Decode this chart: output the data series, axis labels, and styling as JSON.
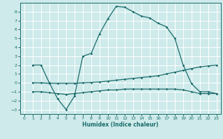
{
  "xlabel": "Humidex (Indice chaleur)",
  "xlim": [
    -0.5,
    23.5
  ],
  "ylim": [
    -3.5,
    9.0
  ],
  "yticks": [
    -3,
    -2,
    -1,
    0,
    1,
    2,
    3,
    4,
    5,
    6,
    7,
    8
  ],
  "xticks": [
    0,
    1,
    2,
    3,
    4,
    5,
    6,
    7,
    8,
    9,
    10,
    11,
    12,
    13,
    14,
    15,
    16,
    17,
    18,
    19,
    20,
    21,
    22,
    23
  ],
  "bg_color": "#ceeaea",
  "grid_color": "#ffffff",
  "line_color": "#1a6b6b",
  "line1_x": [
    1,
    2,
    3,
    4,
    5,
    6,
    7,
    8,
    9,
    10,
    11,
    12,
    13,
    14,
    15,
    16,
    17,
    18,
    19,
    20,
    21,
    22,
    23
  ],
  "line1_y": [
    2.0,
    2.0,
    0.0,
    -1.8,
    -3.0,
    -1.5,
    3.0,
    3.3,
    5.5,
    7.2,
    8.6,
    8.5,
    8.0,
    7.5,
    7.3,
    6.7,
    6.3,
    5.0,
    2.0,
    -0.1,
    -1.0,
    -1.0,
    -1.2
  ],
  "line2_x": [
    1,
    2,
    3,
    4,
    5,
    6,
    7,
    8,
    9,
    10,
    11,
    12,
    13,
    14,
    15,
    16,
    17,
    18,
    19,
    20,
    21,
    22,
    23
  ],
  "line2_y": [
    0.0,
    0.0,
    -0.05,
    -0.05,
    -0.05,
    -0.05,
    0.0,
    0.05,
    0.1,
    0.2,
    0.3,
    0.4,
    0.5,
    0.6,
    0.7,
    0.8,
    1.0,
    1.2,
    1.4,
    1.6,
    1.8,
    1.9,
    2.0
  ],
  "line3_x": [
    1,
    2,
    3,
    4,
    5,
    6,
    7,
    8,
    9,
    10,
    11,
    12,
    13,
    14,
    15,
    16,
    17,
    18,
    19,
    20,
    21,
    22,
    23
  ],
  "line3_y": [
    -1.0,
    -1.0,
    -1.1,
    -1.2,
    -1.3,
    -1.2,
    -1.1,
    -1.0,
    -0.9,
    -0.8,
    -0.8,
    -0.7,
    -0.7,
    -0.7,
    -0.7,
    -0.7,
    -0.7,
    -0.7,
    -0.8,
    -1.0,
    -1.2,
    -1.2,
    -1.2
  ],
  "xlabel_fontsize": 5.5,
  "tick_fontsize": 4.5,
  "marker_size": 1.8,
  "line_width": 0.9
}
